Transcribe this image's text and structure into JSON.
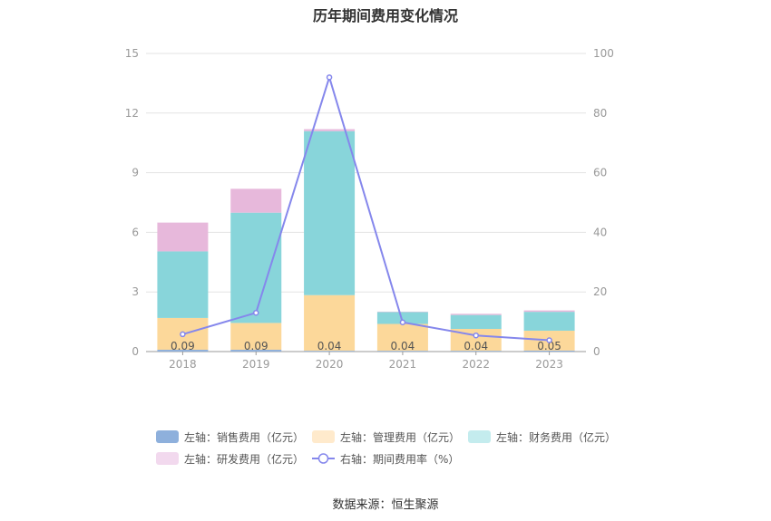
{
  "chart_data": {
    "type": "bar",
    "title": "历年期间费用变化情况",
    "categories": [
      "2018",
      "2019",
      "2020",
      "2021",
      "2022",
      "2023"
    ],
    "left_axis": {
      "ylim": [
        0,
        15
      ],
      "ticks": [
        0,
        3,
        6,
        9,
        12,
        15
      ]
    },
    "right_axis": {
      "ylim": [
        0,
        100
      ],
      "ticks": [
        0,
        20,
        40,
        60,
        80,
        100
      ]
    },
    "series": [
      {
        "name": "左轴：销售费用（亿元）",
        "kind": "stacked-bar",
        "axis": "left",
        "color": "#8eb0dc",
        "values": [
          0.09,
          0.09,
          0.04,
          0.04,
          0.04,
          0.05
        ]
      },
      {
        "name": "左轴：管理费用（亿元）",
        "kind": "stacked-bar",
        "axis": "left",
        "color": "#fcd89a",
        "values": [
          1.6,
          1.35,
          2.8,
          1.35,
          1.1,
          1.0
        ]
      },
      {
        "name": "左轴：财务费用（亿元）",
        "kind": "stacked-bar",
        "axis": "left",
        "color": "#88d5da",
        "values": [
          3.35,
          5.55,
          8.25,
          0.6,
          0.7,
          0.95
        ]
      },
      {
        "name": "左轴：研发费用（亿元）",
        "kind": "stacked-bar",
        "axis": "left",
        "color": "#e7b8db",
        "values": [
          1.45,
          1.2,
          0.1,
          0.02,
          0.06,
          0.07
        ]
      },
      {
        "name": "右轴：期间费用率（%）",
        "kind": "line",
        "axis": "right",
        "color": "#8587ec",
        "values": [
          5.8,
          13.0,
          92.0,
          9.8,
          5.4,
          3.8
        ]
      }
    ],
    "data_labels": [
      "0.09",
      "0.09",
      "0.04",
      "0.04",
      "0.04",
      "0.05"
    ],
    "legend_position": "bottom",
    "grid": true
  },
  "legend_colors": {
    "sales": "#8eb0dc",
    "admin": "#ffeacc",
    "finance": "#c4ecee",
    "rd": "#f2d9ee",
    "rate": "#8587ec"
  },
  "source": "数据来源：恒生聚源"
}
